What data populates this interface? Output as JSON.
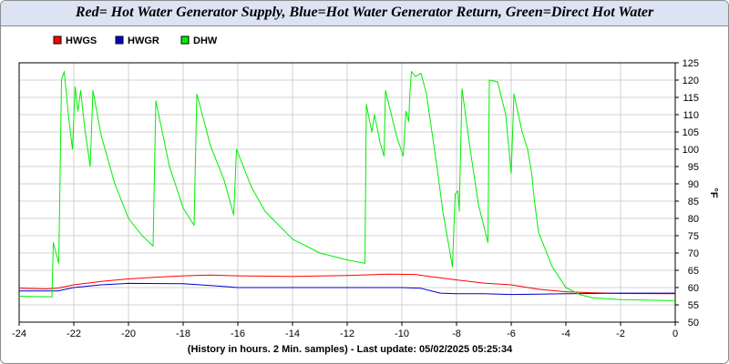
{
  "chart_data": {
    "type": "line",
    "title": "Red= Hot Water Generator Supply, Blue=Hot Water Generator Return, Green=Direct Hot Water",
    "xlabel": "(History in hours. 2 Min. samples) - Last update: 05/02/2025 05:25:34",
    "ylabel": "°F",
    "xlim": [
      -24,
      0
    ],
    "ylim": [
      50,
      125
    ],
    "xticks": [
      "-24",
      "-22",
      "-20",
      "-18",
      "-16",
      "-14",
      "-12",
      "-10",
      "-8",
      "-6",
      "-4",
      "-2",
      "0"
    ],
    "yticks": [
      "50",
      "55",
      "60",
      "65",
      "70",
      "75",
      "80",
      "85",
      "90",
      "95",
      "100",
      "105",
      "110",
      "115",
      "120",
      "125"
    ],
    "grid": true,
    "legend_position": "top-left",
    "series": [
      {
        "name": "HWGS",
        "color": "#ff0000",
        "points": [
          [
            -24,
            59.8
          ],
          [
            -23,
            59.6
          ],
          [
            -22.6,
            59.8
          ],
          [
            -22,
            60.8
          ],
          [
            -21,
            61.8
          ],
          [
            -20,
            62.5
          ],
          [
            -19,
            63.0
          ],
          [
            -18,
            63.4
          ],
          [
            -17,
            63.6
          ],
          [
            -16,
            63.4
          ],
          [
            -14,
            63.2
          ],
          [
            -12,
            63.5
          ],
          [
            -10.5,
            63.9
          ],
          [
            -9.5,
            63.8
          ],
          [
            -9,
            63.2
          ],
          [
            -8,
            62.2
          ],
          [
            -7,
            61.3
          ],
          [
            -6,
            60.8
          ],
          [
            -5,
            59.5
          ],
          [
            -4,
            58.8
          ],
          [
            -3,
            58.5
          ],
          [
            -2,
            58.3
          ],
          [
            0,
            58.2
          ]
        ]
      },
      {
        "name": "HWGR",
        "color": "#0000cc",
        "points": [
          [
            -24,
            59.0
          ],
          [
            -23,
            59.0
          ],
          [
            -22.6,
            59.0
          ],
          [
            -22,
            60.0
          ],
          [
            -21,
            60.8
          ],
          [
            -20,
            61.2
          ],
          [
            -18,
            61.1
          ],
          [
            -17,
            60.6
          ],
          [
            -16,
            60.0
          ],
          [
            -14,
            60.0
          ],
          [
            -12,
            60.0
          ],
          [
            -10,
            60.0
          ],
          [
            -9.3,
            59.8
          ],
          [
            -8.6,
            58.4
          ],
          [
            -8,
            58.2
          ],
          [
            -7,
            58.2
          ],
          [
            -6,
            58.0
          ],
          [
            -5,
            58.1
          ],
          [
            -4,
            58.2
          ],
          [
            -2,
            58.4
          ],
          [
            0,
            58.4
          ]
        ]
      },
      {
        "name": "DHW",
        "color": "#00ee00",
        "points": [
          [
            -24,
            57.5
          ],
          [
            -22.8,
            57.3
          ],
          [
            -22.75,
            73.0
          ],
          [
            -22.55,
            67.0
          ],
          [
            -22.45,
            120.0
          ],
          [
            -22.35,
            122.5
          ],
          [
            -22.2,
            110.0
          ],
          [
            -22.05,
            100.0
          ],
          [
            -21.95,
            118.0
          ],
          [
            -21.85,
            111.0
          ],
          [
            -21.75,
            117.0
          ],
          [
            -21.6,
            106.0
          ],
          [
            -21.4,
            95.0
          ],
          [
            -21.3,
            117.0
          ],
          [
            -21.0,
            104.0
          ],
          [
            -20.5,
            90.0
          ],
          [
            -20.0,
            80.0
          ],
          [
            -19.5,
            75.0
          ],
          [
            -19.1,
            72.0
          ],
          [
            -19.0,
            114.0
          ],
          [
            -18.5,
            95.0
          ],
          [
            -18.0,
            83.0
          ],
          [
            -17.6,
            78.0
          ],
          [
            -17.5,
            116.0
          ],
          [
            -17.0,
            101.0
          ],
          [
            -16.5,
            91.0
          ],
          [
            -16.15,
            81.0
          ],
          [
            -16.05,
            100.0
          ],
          [
            -15.5,
            89.0
          ],
          [
            -15.0,
            82.0
          ],
          [
            -14.0,
            74.0
          ],
          [
            -13.0,
            70.0
          ],
          [
            -12.0,
            68.0
          ],
          [
            -11.35,
            67.0
          ],
          [
            -11.3,
            113.0
          ],
          [
            -11.1,
            105.0
          ],
          [
            -11.0,
            110.0
          ],
          [
            -10.8,
            102.0
          ],
          [
            -10.65,
            98.0
          ],
          [
            -10.6,
            117.0
          ],
          [
            -10.2,
            104.0
          ],
          [
            -9.95,
            98.0
          ],
          [
            -9.85,
            111.0
          ],
          [
            -9.75,
            108.0
          ],
          [
            -9.7,
            117.0
          ],
          [
            -9.65,
            122.5
          ],
          [
            -9.5,
            121.0
          ],
          [
            -9.3,
            122.0
          ],
          [
            -9.1,
            116.0
          ],
          [
            -8.7,
            94.0
          ],
          [
            -8.5,
            82.0
          ],
          [
            -8.15,
            66.0
          ],
          [
            -8.05,
            87.0
          ],
          [
            -7.95,
            88.0
          ],
          [
            -7.9,
            82.0
          ],
          [
            -7.8,
            117.5
          ],
          [
            -7.5,
            100.0
          ],
          [
            -7.2,
            84.0
          ],
          [
            -6.85,
            73.0
          ],
          [
            -6.8,
            120.0
          ],
          [
            -6.5,
            119.5
          ],
          [
            -6.2,
            110.0
          ],
          [
            -6.0,
            93.0
          ],
          [
            -5.9,
            116.0
          ],
          [
            -5.6,
            105.0
          ],
          [
            -5.4,
            100.0
          ],
          [
            -5.25,
            93.0
          ],
          [
            -5.15,
            85.0
          ],
          [
            -5.0,
            76.0
          ],
          [
            -4.5,
            66.0
          ],
          [
            -4.0,
            60.0
          ],
          [
            -3.5,
            58.0
          ],
          [
            -3.0,
            57.0
          ],
          [
            -2.0,
            56.5
          ],
          [
            0,
            56.2
          ]
        ]
      }
    ]
  }
}
